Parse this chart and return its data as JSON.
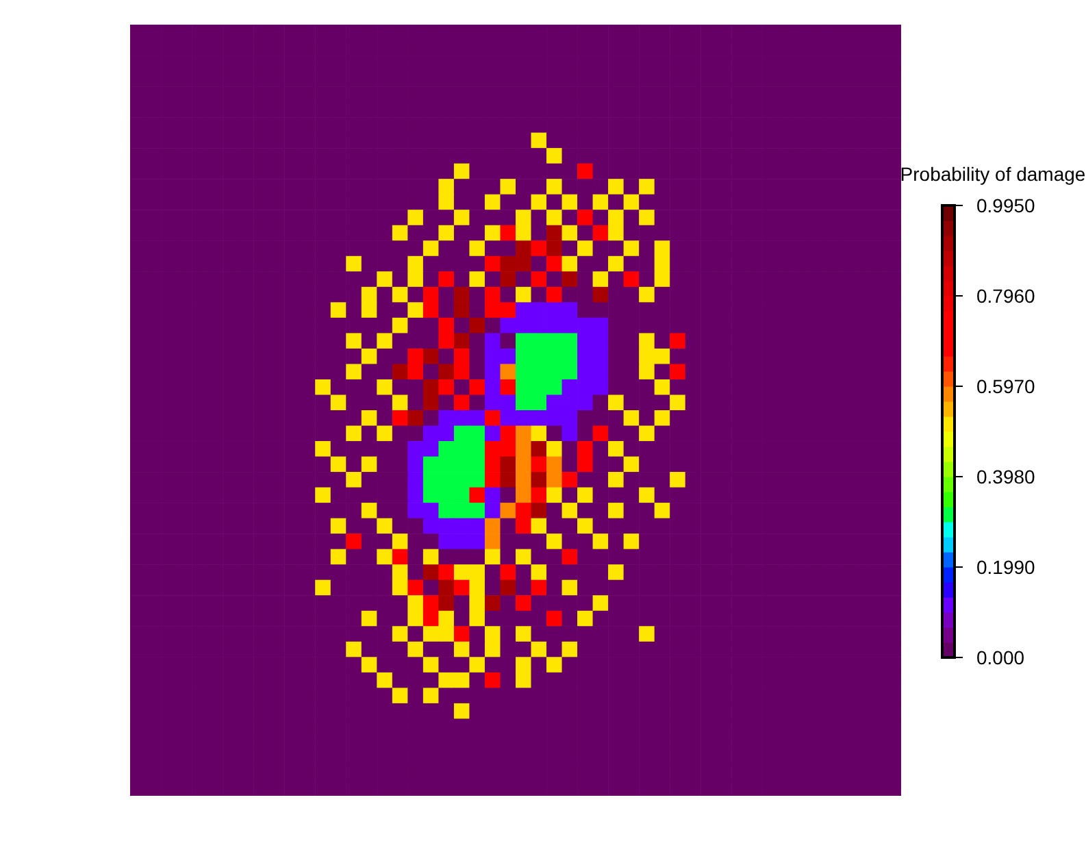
{
  "chart_data": {
    "type": "heatmap",
    "clabel": "Probability of damage",
    "tick_labels": false,
    "categories": [
      null,
      null,
      null,
      null,
      null,
      null,
      null,
      null,
      null,
      null,
      null,
      null,
      null,
      null,
      null,
      null,
      null,
      null,
      null,
      null,
      null,
      null,
      null,
      null,
      null,
      null,
      null,
      null,
      null,
      null,
      null,
      null,
      null,
      null,
      null,
      null,
      null,
      null,
      null,
      null,
      null,
      null,
      null,
      null,
      null,
      null,
      null,
      null,
      null,
      null
    ],
    "y_categories": [
      null,
      null,
      null,
      null,
      null,
      null,
      null,
      null,
      null,
      null,
      null,
      null,
      null,
      null,
      null,
      null,
      null,
      null,
      null,
      null,
      null,
      null,
      null,
      null,
      null,
      null,
      null,
      null,
      null,
      null,
      null,
      null,
      null,
      null,
      null,
      null,
      null,
      null,
      null,
      null,
      null,
      null,
      null,
      null,
      null,
      null,
      null,
      null,
      null,
      null
    ],
    "clim": [
      0,
      0.995
    ],
    "cticks": [
      {
        "value": 0,
        "label": "0.000"
      },
      {
        "value": 0.199,
        "label": "0.1990"
      },
      {
        "value": 0.398,
        "label": "0.3980"
      },
      {
        "value": 0.597,
        "label": "0.5970"
      },
      {
        "value": 0.796,
        "label": "0.7960"
      },
      {
        "value": 0.995,
        "label": "0.9950"
      }
    ],
    "cells": [
      [
        0,
        0,
        0,
        0,
        0,
        0,
        0,
        0,
        0,
        0,
        0,
        0,
        0,
        0,
        0,
        0,
        0,
        0,
        0,
        0,
        0,
        0,
        0,
        0,
        0,
        0,
        0,
        0,
        0,
        0,
        0,
        0,
        0,
        0,
        0,
        0,
        0,
        0,
        0,
        0,
        0,
        0,
        0,
        0,
        0,
        0,
        0,
        0,
        0,
        0
      ],
      [
        0,
        0,
        0,
        0,
        0,
        0,
        0,
        0,
        0,
        0,
        0,
        0,
        0,
        0,
        0,
        0,
        0,
        0,
        0,
        0,
        0,
        0,
        0,
        0,
        0,
        0,
        0,
        0,
        0,
        0,
        0,
        0,
        0,
        0,
        0,
        0,
        0,
        0,
        0,
        0,
        0,
        0,
        0,
        0,
        0,
        0,
        0,
        0,
        0,
        0
      ],
      [
        0,
        0,
        0,
        0,
        0,
        0,
        0,
        0,
        0,
        0,
        0,
        0,
        0,
        0,
        0,
        0,
        0,
        0,
        0,
        0,
        0,
        0,
        0,
        0,
        0,
        0,
        0,
        0,
        0,
        0,
        0,
        0,
        0,
        0,
        0,
        0,
        0,
        0,
        0,
        0,
        0,
        0,
        0,
        0,
        0,
        0,
        0,
        0,
        0,
        0
      ],
      [
        0,
        0,
        0,
        0,
        0,
        0,
        0,
        0,
        0,
        0,
        0,
        0,
        0,
        0,
        0,
        0,
        0,
        0,
        0,
        0,
        0,
        0,
        0,
        0,
        0,
        0,
        0,
        0,
        0,
        0,
        0,
        0,
        0,
        0,
        0,
        0,
        0,
        0,
        0,
        0,
        0,
        0,
        0,
        0,
        0,
        0,
        0,
        0,
        0,
        0
      ],
      [
        0,
        0,
        0,
        0,
        0,
        0,
        0,
        0,
        0,
        0,
        0,
        0,
        0,
        0,
        0,
        0,
        0,
        0,
        0,
        0,
        0,
        0,
        0,
        0,
        0,
        0,
        0,
        0,
        0,
        0,
        0,
        0,
        0,
        0,
        0,
        0,
        0,
        0,
        0,
        0,
        0,
        0,
        0,
        0,
        0,
        0,
        0,
        0,
        0,
        0
      ],
      [
        0,
        0,
        0,
        0,
        0,
        0,
        0,
        0,
        0,
        0,
        0,
        0,
        0,
        0,
        0,
        0,
        0,
        0,
        0,
        0,
        0,
        0,
        0,
        0,
        0,
        0,
        0,
        0,
        0,
        0,
        0,
        0,
        0,
        0,
        0,
        0,
        0,
        0,
        0,
        0,
        0,
        0,
        0,
        0,
        0,
        0,
        0,
        0,
        0,
        0
      ],
      [
        0,
        0,
        0,
        0,
        0,
        0,
        0,
        0,
        0,
        0,
        0,
        0,
        0,
        0,
        0,
        0,
        0,
        0,
        0,
        0,
        0,
        0,
        0,
        0,
        0,
        0,
        0,
        0,
        0,
        0,
        0,
        0,
        0,
        0,
        0,
        0,
        0,
        0,
        0,
        0,
        0,
        0,
        0,
        0,
        0,
        0,
        0,
        0,
        0,
        0
      ],
      [
        0,
        0,
        0,
        0,
        0,
        0,
        0,
        0,
        0,
        0,
        0,
        0,
        0,
        0,
        0,
        0,
        0,
        0,
        0,
        0,
        0,
        0,
        0,
        0,
        0,
        0,
        0.51,
        0,
        0,
        0,
        0,
        0,
        0,
        0,
        0,
        0,
        0,
        0,
        0,
        0,
        0,
        0,
        0,
        0,
        0,
        0,
        0,
        0,
        0,
        0
      ],
      [
        0,
        0,
        0,
        0,
        0,
        0,
        0,
        0,
        0,
        0,
        0,
        0,
        0,
        0,
        0,
        0,
        0,
        0,
        0,
        0,
        0,
        0,
        0,
        0,
        0,
        0,
        0,
        0.51,
        0,
        0,
        0,
        0,
        0,
        0,
        0,
        0,
        0,
        0,
        0,
        0,
        0,
        0,
        0,
        0,
        0,
        0,
        0,
        0,
        0,
        0
      ],
      [
        0,
        0,
        0,
        0,
        0,
        0,
        0,
        0,
        0,
        0,
        0,
        0,
        0,
        0,
        0,
        0,
        0,
        0,
        0,
        0,
        0,
        0.51,
        0,
        0,
        0,
        0,
        0,
        0,
        0,
        0.7,
        0,
        0,
        0,
        0,
        0,
        0,
        0,
        0,
        0,
        0,
        0,
        0,
        0,
        0,
        0,
        0,
        0,
        0,
        0,
        0
      ],
      [
        0,
        0,
        0,
        0,
        0,
        0,
        0,
        0,
        0,
        0,
        0,
        0,
        0,
        0,
        0,
        0,
        0,
        0,
        0,
        0,
        0.51,
        0,
        0,
        0,
        0.51,
        0,
        0,
        0.51,
        0,
        0,
        0,
        0.51,
        0,
        0.51,
        0,
        0,
        0,
        0,
        0,
        0,
        0,
        0,
        0,
        0,
        0,
        0,
        0,
        0,
        0,
        0
      ],
      [
        0,
        0,
        0,
        0,
        0,
        0,
        0,
        0,
        0,
        0,
        0,
        0,
        0,
        0,
        0,
        0,
        0,
        0,
        0,
        0,
        0.51,
        0,
        0,
        0.51,
        0,
        0,
        0.51,
        0,
        0.51,
        0,
        0.51,
        0,
        0.51,
        0,
        0,
        0,
        0,
        0,
        0,
        0,
        0,
        0,
        0,
        0,
        0,
        0,
        0,
        0,
        0,
        0
      ],
      [
        0,
        0,
        0,
        0,
        0,
        0,
        0,
        0,
        0,
        0,
        0,
        0,
        0,
        0,
        0,
        0,
        0,
        0,
        0.51,
        0,
        0,
        0.51,
        0,
        0,
        0,
        0.51,
        0,
        0.51,
        0,
        0.7,
        0,
        0.51,
        0,
        0.51,
        0,
        0,
        0,
        0,
        0,
        0,
        0,
        0,
        0,
        0,
        0,
        0,
        0,
        0,
        0,
        0
      ],
      [
        0,
        0,
        0,
        0,
        0,
        0,
        0,
        0,
        0,
        0,
        0,
        0,
        0,
        0,
        0,
        0,
        0,
        0.51,
        0,
        0,
        0.51,
        0,
        0,
        0.51,
        0.7,
        0.51,
        0,
        0.9,
        0.51,
        0,
        0.7,
        0.51,
        0,
        0,
        0,
        0,
        0,
        0,
        0,
        0,
        0,
        0,
        0,
        0,
        0,
        0,
        0,
        0,
        0,
        0
      ],
      [
        0,
        0,
        0,
        0,
        0,
        0,
        0,
        0,
        0,
        0,
        0,
        0,
        0,
        0,
        0,
        0,
        0,
        0,
        0,
        0.51,
        0,
        0,
        0.51,
        0,
        0,
        0.9,
        0.7,
        0.9,
        0,
        0.51,
        0,
        0,
        0.51,
        0,
        0.51,
        0,
        0,
        0,
        0,
        0,
        0,
        0,
        0,
        0,
        0,
        0,
        0,
        0,
        0,
        0
      ],
      [
        0,
        0,
        0,
        0,
        0,
        0,
        0,
        0,
        0,
        0,
        0,
        0,
        0,
        0,
        0.51,
        0,
        0,
        0,
        0.51,
        0,
        0,
        0,
        0,
        0.7,
        0.9,
        0.9,
        0,
        0.7,
        0.51,
        0,
        0,
        0.51,
        0,
        0,
        0.51,
        0,
        0,
        0,
        0,
        0,
        0,
        0,
        0,
        0,
        0,
        0,
        0,
        0,
        0,
        0
      ],
      [
        0,
        0,
        0,
        0,
        0,
        0,
        0,
        0,
        0,
        0,
        0,
        0,
        0,
        0,
        0,
        0,
        0.51,
        0,
        0.51,
        0,
        0.7,
        0,
        0.51,
        0,
        0.9,
        0,
        0.7,
        0,
        0.9,
        0,
        0.51,
        0,
        0.7,
        0,
        0.51,
        0,
        0,
        0,
        0,
        0,
        0,
        0,
        0,
        0,
        0,
        0,
        0,
        0,
        0,
        0
      ],
      [
        0,
        0,
        0,
        0,
        0,
        0,
        0,
        0,
        0,
        0,
        0,
        0,
        0,
        0,
        0,
        0.51,
        0,
        0.51,
        0,
        0.7,
        0,
        0.9,
        0,
        0.7,
        0,
        0.51,
        0,
        0.7,
        0,
        0,
        0.9,
        0,
        0,
        0.51,
        0,
        0,
        0,
        0,
        0,
        0,
        0,
        0,
        0,
        0,
        0,
        0,
        0,
        0,
        0,
        0
      ],
      [
        0,
        0,
        0,
        0,
        0,
        0,
        0,
        0,
        0,
        0,
        0,
        0,
        0,
        0.51,
        0,
        0.51,
        0,
        0,
        0.51,
        0.7,
        0,
        0.9,
        0,
        0.7,
        0.7,
        0.11,
        0.11,
        0.11,
        0.11,
        0,
        0,
        0,
        0,
        0,
        0,
        0,
        0,
        0,
        0,
        0,
        0,
        0,
        0,
        0,
        0,
        0,
        0,
        0,
        0,
        0
      ],
      [
        0,
        0,
        0,
        0,
        0,
        0,
        0,
        0,
        0,
        0,
        0,
        0,
        0,
        0,
        0,
        0,
        0,
        0.51,
        0,
        0,
        0.7,
        0,
        0.9,
        0,
        0.11,
        0.11,
        0.11,
        0.11,
        0.11,
        0.11,
        0.11,
        0,
        0,
        0,
        0,
        0,
        0,
        0,
        0,
        0,
        0,
        0,
        0,
        0,
        0,
        0,
        0,
        0,
        0,
        0
      ],
      [
        0,
        0,
        0,
        0,
        0,
        0,
        0,
        0,
        0,
        0,
        0,
        0,
        0,
        0,
        0.51,
        0,
        0.51,
        0,
        0,
        0,
        0.7,
        0.9,
        0,
        0.11,
        0,
        0.31,
        0.31,
        0.31,
        0.31,
        0.11,
        0.11,
        0,
        0,
        0.51,
        0,
        0.7,
        0,
        0,
        0,
        0,
        0,
        0,
        0,
        0,
        0,
        0,
        0,
        0,
        0,
        0
      ],
      [
        0,
        0,
        0,
        0,
        0,
        0,
        0,
        0,
        0,
        0,
        0,
        0,
        0,
        0,
        0,
        0.51,
        0,
        0,
        0.7,
        0.9,
        0,
        0.7,
        0,
        0.11,
        0.11,
        0.31,
        0.31,
        0.31,
        0.31,
        0.11,
        0.11,
        0,
        0,
        0.51,
        0.51,
        0,
        0,
        0,
        0,
        0,
        0,
        0,
        0,
        0,
        0,
        0,
        0,
        0,
        0,
        0
      ],
      [
        0,
        0,
        0,
        0,
        0,
        0,
        0,
        0,
        0,
        0,
        0,
        0,
        0,
        0,
        0.51,
        0,
        0,
        0.9,
        0.7,
        0,
        0.9,
        0.7,
        0,
        0.11,
        0.58,
        0.31,
        0.31,
        0.31,
        0.31,
        0.11,
        0.11,
        0,
        0,
        0.51,
        0,
        0.7,
        0,
        0,
        0,
        0,
        0,
        0,
        0,
        0,
        0,
        0,
        0,
        0,
        0,
        0
      ],
      [
        0,
        0,
        0,
        0,
        0,
        0,
        0,
        0,
        0,
        0,
        0,
        0,
        0.51,
        0,
        0,
        0,
        0.51,
        0,
        0,
        0.9,
        0.7,
        0,
        0.7,
        0.11,
        0.7,
        0.31,
        0.31,
        0.31,
        0.11,
        0.11,
        0.11,
        0,
        0,
        0,
        0.51,
        0,
        0,
        0,
        0,
        0,
        0,
        0,
        0,
        0,
        0,
        0,
        0,
        0,
        0,
        0
      ],
      [
        0,
        0,
        0,
        0,
        0,
        0,
        0,
        0,
        0,
        0,
        0,
        0,
        0,
        0.51,
        0,
        0,
        0,
        0.51,
        0,
        0.9,
        0,
        0.7,
        0,
        0.11,
        0.11,
        0.31,
        0.31,
        0.11,
        0.11,
        0.11,
        0,
        0.51,
        0,
        0,
        0,
        0.51,
        0,
        0,
        0,
        0,
        0,
        0,
        0,
        0,
        0,
        0,
        0,
        0,
        0,
        0
      ],
      [
        0,
        0,
        0,
        0,
        0,
        0,
        0,
        0,
        0,
        0,
        0,
        0,
        0,
        0,
        0,
        0.51,
        0,
        0.7,
        0.9,
        0,
        0.11,
        0.11,
        0.11,
        0.7,
        0.11,
        0.11,
        0.11,
        0.11,
        0.11,
        0,
        0,
        0,
        0.51,
        0,
        0.51,
        0,
        0,
        0,
        0,
        0,
        0,
        0,
        0,
        0,
        0,
        0,
        0,
        0,
        0,
        0
      ],
      [
        0,
        0,
        0,
        0,
        0,
        0,
        0,
        0,
        0,
        0,
        0,
        0,
        0,
        0,
        0.51,
        0,
        0.51,
        0,
        0,
        0.11,
        0.11,
        0.31,
        0.31,
        0.11,
        0.7,
        0.58,
        0.51,
        0,
        0.11,
        0,
        0.7,
        0,
        0,
        0.51,
        0,
        0,
        0,
        0,
        0,
        0,
        0,
        0,
        0,
        0,
        0,
        0,
        0,
        0,
        0,
        0
      ],
      [
        0,
        0,
        0,
        0,
        0,
        0,
        0,
        0,
        0,
        0,
        0,
        0,
        0.51,
        0,
        0,
        0,
        0,
        0,
        0.11,
        0.11,
        0.31,
        0.31,
        0.31,
        0.7,
        0.7,
        0.58,
        0.9,
        0.51,
        0,
        0.7,
        0,
        0.51,
        0,
        0,
        0,
        0,
        0,
        0,
        0,
        0,
        0,
        0,
        0,
        0,
        0,
        0,
        0,
        0,
        0,
        0
      ],
      [
        0,
        0,
        0,
        0,
        0,
        0,
        0,
        0,
        0,
        0,
        0,
        0,
        0,
        0.51,
        0,
        0.51,
        0,
        0,
        0.11,
        0.31,
        0.31,
        0.31,
        0.31,
        0.7,
        0.9,
        0.58,
        0.7,
        0.58,
        0,
        0.7,
        0,
        0,
        0.51,
        0,
        0,
        0,
        0,
        0,
        0,
        0,
        0,
        0,
        0,
        0,
        0,
        0,
        0,
        0,
        0,
        0
      ],
      [
        0,
        0,
        0,
        0,
        0,
        0,
        0,
        0,
        0,
        0,
        0,
        0,
        0,
        0,
        0.51,
        0,
        0,
        0,
        0.11,
        0.31,
        0.31,
        0.31,
        0.31,
        0.7,
        0.9,
        0.58,
        0.9,
        0.58,
        0.7,
        0,
        0,
        0.51,
        0,
        0,
        0,
        0.51,
        0,
        0,
        0,
        0,
        0,
        0,
        0,
        0,
        0,
        0,
        0,
        0,
        0,
        0
      ],
      [
        0,
        0,
        0,
        0,
        0,
        0,
        0,
        0,
        0,
        0,
        0,
        0,
        0.51,
        0,
        0,
        0,
        0,
        0,
        0.11,
        0.31,
        0.31,
        0.31,
        0.7,
        0.11,
        0,
        0.58,
        0.7,
        0.51,
        0,
        0.51,
        0,
        0,
        0,
        0.51,
        0,
        0,
        0,
        0,
        0,
        0,
        0,
        0,
        0,
        0,
        0,
        0,
        0,
        0,
        0,
        0
      ],
      [
        0,
        0,
        0,
        0,
        0,
        0,
        0,
        0,
        0,
        0,
        0,
        0,
        0,
        0,
        0,
        0.51,
        0,
        0,
        0.11,
        0.11,
        0.31,
        0.31,
        0.31,
        0.11,
        0.58,
        0.7,
        0.9,
        0,
        0.51,
        0,
        0,
        0.51,
        0,
        0,
        0.51,
        0,
        0,
        0,
        0,
        0,
        0,
        0,
        0,
        0,
        0,
        0,
        0,
        0,
        0,
        0
      ],
      [
        0,
        0,
        0,
        0,
        0,
        0,
        0,
        0,
        0,
        0,
        0,
        0,
        0,
        0.51,
        0,
        0,
        0.51,
        0,
        0,
        0.11,
        0.11,
        0.11,
        0.11,
        0.58,
        0,
        0.7,
        0.51,
        0,
        0,
        0.51,
        0,
        0,
        0,
        0,
        0,
        0,
        0,
        0,
        0,
        0,
        0,
        0,
        0,
        0,
        0,
        0,
        0,
        0,
        0,
        0
      ],
      [
        0,
        0,
        0,
        0,
        0,
        0,
        0,
        0,
        0,
        0,
        0,
        0,
        0,
        0,
        0.7,
        0,
        0,
        0.51,
        0,
        0,
        0.11,
        0.11,
        0.11,
        0.58,
        0,
        0,
        0,
        0.51,
        0,
        0,
        0.51,
        0,
        0.51,
        0,
        0,
        0,
        0,
        0,
        0,
        0,
        0,
        0,
        0,
        0,
        0,
        0,
        0,
        0,
        0,
        0
      ],
      [
        0,
        0,
        0,
        0,
        0,
        0,
        0,
        0,
        0,
        0,
        0,
        0,
        0,
        0.51,
        0,
        0,
        0.51,
        0.7,
        0,
        0.51,
        0,
        0,
        0,
        0.51,
        0,
        0.51,
        0,
        0,
        0.7,
        0,
        0,
        0,
        0,
        0,
        0,
        0,
        0,
        0,
        0,
        0,
        0,
        0,
        0,
        0,
        0,
        0,
        0,
        0,
        0,
        0
      ],
      [
        0,
        0,
        0,
        0,
        0,
        0,
        0,
        0,
        0,
        0,
        0,
        0,
        0,
        0,
        0,
        0,
        0,
        0.51,
        0,
        0.9,
        0.7,
        0.51,
        0.51,
        0,
        0.7,
        0,
        0.51,
        0,
        0,
        0,
        0,
        0.51,
        0,
        0,
        0,
        0,
        0,
        0,
        0,
        0,
        0,
        0,
        0,
        0,
        0,
        0,
        0,
        0,
        0,
        0
      ],
      [
        0,
        0,
        0,
        0,
        0,
        0,
        0,
        0,
        0,
        0,
        0,
        0,
        0.51,
        0,
        0,
        0,
        0,
        0.51,
        0.7,
        0,
        0.9,
        0.7,
        0.51,
        0,
        0.9,
        0,
        0.7,
        0,
        0.51,
        0,
        0,
        0,
        0,
        0,
        0,
        0,
        0,
        0,
        0,
        0,
        0,
        0,
        0,
        0,
        0,
        0,
        0,
        0,
        0,
        0
      ],
      [
        0,
        0,
        0,
        0,
        0,
        0,
        0,
        0,
        0,
        0,
        0,
        0,
        0,
        0,
        0,
        0,
        0,
        0,
        0.51,
        0.7,
        0.9,
        0,
        0.51,
        0.9,
        0,
        0.7,
        0,
        0,
        0,
        0,
        0.51,
        0,
        0,
        0,
        0,
        0,
        0,
        0,
        0,
        0,
        0,
        0,
        0,
        0,
        0,
        0,
        0,
        0,
        0,
        0
      ],
      [
        0,
        0,
        0,
        0,
        0,
        0,
        0,
        0,
        0,
        0,
        0,
        0,
        0,
        0,
        0,
        0.51,
        0,
        0,
        0.51,
        0.7,
        0.51,
        0,
        0.51,
        0,
        0,
        0,
        0,
        0.7,
        0,
        0.51,
        0,
        0,
        0,
        0,
        0,
        0,
        0,
        0,
        0,
        0,
        0,
        0,
        0,
        0,
        0,
        0,
        0,
        0,
        0,
        0
      ],
      [
        0,
        0,
        0,
        0,
        0,
        0,
        0,
        0,
        0,
        0,
        0,
        0,
        0,
        0,
        0,
        0,
        0,
        0.51,
        0,
        0.51,
        0.51,
        0.7,
        0,
        0.51,
        0,
        0.51,
        0,
        0,
        0,
        0,
        0,
        0,
        0,
        0.51,
        0,
        0,
        0,
        0,
        0,
        0,
        0,
        0,
        0,
        0,
        0,
        0,
        0,
        0,
        0,
        0
      ],
      [
        0,
        0,
        0,
        0,
        0,
        0,
        0,
        0,
        0,
        0,
        0,
        0,
        0,
        0,
        0.51,
        0,
        0,
        0,
        0.51,
        0,
        0,
        0.51,
        0,
        0.51,
        0,
        0,
        0.51,
        0,
        0.51,
        0,
        0,
        0,
        0,
        0,
        0,
        0,
        0,
        0,
        0,
        0,
        0,
        0,
        0,
        0,
        0,
        0,
        0,
        0,
        0,
        0
      ],
      [
        0,
        0,
        0,
        0,
        0,
        0,
        0,
        0,
        0,
        0,
        0,
        0,
        0,
        0,
        0,
        0.51,
        0,
        0,
        0,
        0.51,
        0,
        0,
        0.51,
        0,
        0,
        0.51,
        0,
        0.51,
        0,
        0,
        0,
        0,
        0,
        0,
        0,
        0,
        0,
        0,
        0,
        0,
        0,
        0,
        0,
        0,
        0,
        0,
        0,
        0,
        0,
        0
      ],
      [
        0,
        0,
        0,
        0,
        0,
        0,
        0,
        0,
        0,
        0,
        0,
        0,
        0,
        0,
        0,
        0,
        0.51,
        0,
        0,
        0,
        0.51,
        0.51,
        0,
        0.7,
        0,
        0.51,
        0,
        0,
        0,
        0,
        0,
        0,
        0,
        0,
        0,
        0,
        0,
        0,
        0,
        0,
        0,
        0,
        0,
        0,
        0,
        0,
        0,
        0,
        0,
        0
      ],
      [
        0,
        0,
        0,
        0,
        0,
        0,
        0,
        0,
        0,
        0,
        0,
        0,
        0,
        0,
        0,
        0,
        0,
        0.51,
        0,
        0.51,
        0,
        0,
        0,
        0,
        0,
        0,
        0,
        0,
        0,
        0,
        0,
        0,
        0,
        0,
        0,
        0,
        0,
        0,
        0,
        0,
        0,
        0,
        0,
        0,
        0,
        0,
        0,
        0,
        0,
        0
      ],
      [
        0,
        0,
        0,
        0,
        0,
        0,
        0,
        0,
        0,
        0,
        0,
        0,
        0,
        0,
        0,
        0,
        0,
        0,
        0,
        0,
        0,
        0.51,
        0,
        0,
        0,
        0,
        0,
        0,
        0,
        0,
        0,
        0,
        0,
        0,
        0,
        0,
        0,
        0,
        0,
        0,
        0,
        0,
        0,
        0,
        0,
        0,
        0,
        0,
        0,
        0
      ],
      [
        0,
        0,
        0,
        0,
        0,
        0,
        0,
        0,
        0,
        0,
        0,
        0,
        0,
        0,
        0,
        0,
        0,
        0,
        0,
        0,
        0,
        0,
        0,
        0,
        0,
        0,
        0,
        0,
        0,
        0,
        0,
        0,
        0,
        0,
        0,
        0,
        0,
        0,
        0,
        0,
        0,
        0,
        0,
        0,
        0,
        0,
        0,
        0,
        0,
        0
      ],
      [
        0,
        0,
        0,
        0,
        0,
        0,
        0,
        0,
        0,
        0,
        0,
        0,
        0,
        0,
        0,
        0,
        0,
        0,
        0,
        0,
        0,
        0,
        0,
        0,
        0,
        0,
        0,
        0,
        0,
        0,
        0,
        0,
        0,
        0,
        0,
        0,
        0,
        0,
        0,
        0,
        0,
        0,
        0,
        0,
        0,
        0,
        0,
        0,
        0,
        0
      ],
      [
        0,
        0,
        0,
        0,
        0,
        0,
        0,
        0,
        0,
        0,
        0,
        0,
        0,
        0,
        0,
        0,
        0,
        0,
        0,
        0,
        0,
        0,
        0,
        0,
        0,
        0,
        0,
        0,
        0,
        0,
        0,
        0,
        0,
        0,
        0,
        0,
        0,
        0,
        0,
        0,
        0,
        0,
        0,
        0,
        0,
        0,
        0,
        0,
        0,
        0
      ],
      [
        0,
        0,
        0,
        0,
        0,
        0,
        0,
        0,
        0,
        0,
        0,
        0,
        0,
        0,
        0,
        0,
        0,
        0,
        0,
        0,
        0,
        0,
        0,
        0,
        0,
        0,
        0,
        0,
        0,
        0,
        0,
        0,
        0,
        0,
        0,
        0,
        0,
        0,
        0,
        0,
        0,
        0,
        0,
        0,
        0,
        0,
        0,
        0,
        0,
        0
      ],
      [
        0,
        0,
        0,
        0,
        0,
        0,
        0,
        0,
        0,
        0,
        0,
        0,
        0,
        0,
        0,
        0,
        0,
        0,
        0,
        0,
        0,
        0,
        0,
        0,
        0,
        0,
        0,
        0,
        0,
        0,
        0,
        0,
        0,
        0,
        0,
        0,
        0,
        0,
        0,
        0,
        0,
        0,
        0,
        0,
        0,
        0,
        0,
        0,
        0,
        0
      ]
    ]
  }
}
